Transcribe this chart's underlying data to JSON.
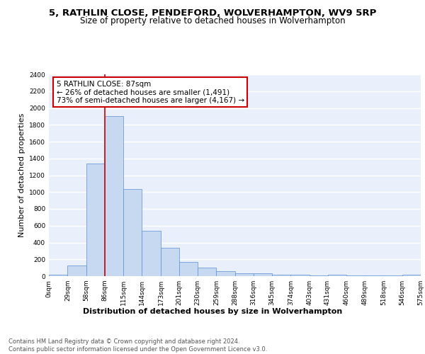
{
  "title1": "5, RATHLIN CLOSE, PENDEFORD, WOLVERHAMPTON, WV9 5RP",
  "title2": "Size of property relative to detached houses in Wolverhampton",
  "xlabel": "Distribution of detached houses by size in Wolverhampton",
  "ylabel": "Number of detached properties",
  "bar_color": "#c6d9f1",
  "bar_edge_color": "#5b8ed6",
  "background_color": "#eaf0fb",
  "grid_color": "#ffffff",
  "bins": [
    0,
    29,
    58,
    86,
    115,
    144,
    173,
    201,
    230,
    259,
    288,
    316,
    345,
    374,
    403,
    431,
    460,
    489,
    518,
    546,
    575
  ],
  "counts": [
    20,
    130,
    1340,
    1900,
    1040,
    540,
    340,
    165,
    105,
    55,
    35,
    30,
    20,
    15,
    5,
    20,
    5,
    5,
    5,
    20
  ],
  "tick_labels": [
    "0sqm",
    "29sqm",
    "58sqm",
    "86sqm",
    "115sqm",
    "144sqm",
    "173sqm",
    "201sqm",
    "230sqm",
    "259sqm",
    "288sqm",
    "316sqm",
    "345sqm",
    "374sqm",
    "403sqm",
    "431sqm",
    "460sqm",
    "489sqm",
    "518sqm",
    "546sqm",
    "575sqm"
  ],
  "property_size": 87,
  "annotation_text": "5 RATHLIN CLOSE: 87sqm\n← 26% of detached houses are smaller (1,491)\n73% of semi-detached houses are larger (4,167) →",
  "annotation_box_color": "#ffffff",
  "annotation_box_edge": "#cc0000",
  "red_line_color": "#cc0000",
  "ylim": [
    0,
    2400
  ],
  "yticks": [
    0,
    200,
    400,
    600,
    800,
    1000,
    1200,
    1400,
    1600,
    1800,
    2000,
    2200,
    2400
  ],
  "footer_text": "Contains HM Land Registry data © Crown copyright and database right 2024.\nContains public sector information licensed under the Open Government Licence v3.0.",
  "title1_fontsize": 9.5,
  "title2_fontsize": 8.5,
  "xlabel_fontsize": 8,
  "ylabel_fontsize": 8,
  "tick_fontsize": 6.5,
  "annotation_fontsize": 7.5,
  "footer_fontsize": 6
}
